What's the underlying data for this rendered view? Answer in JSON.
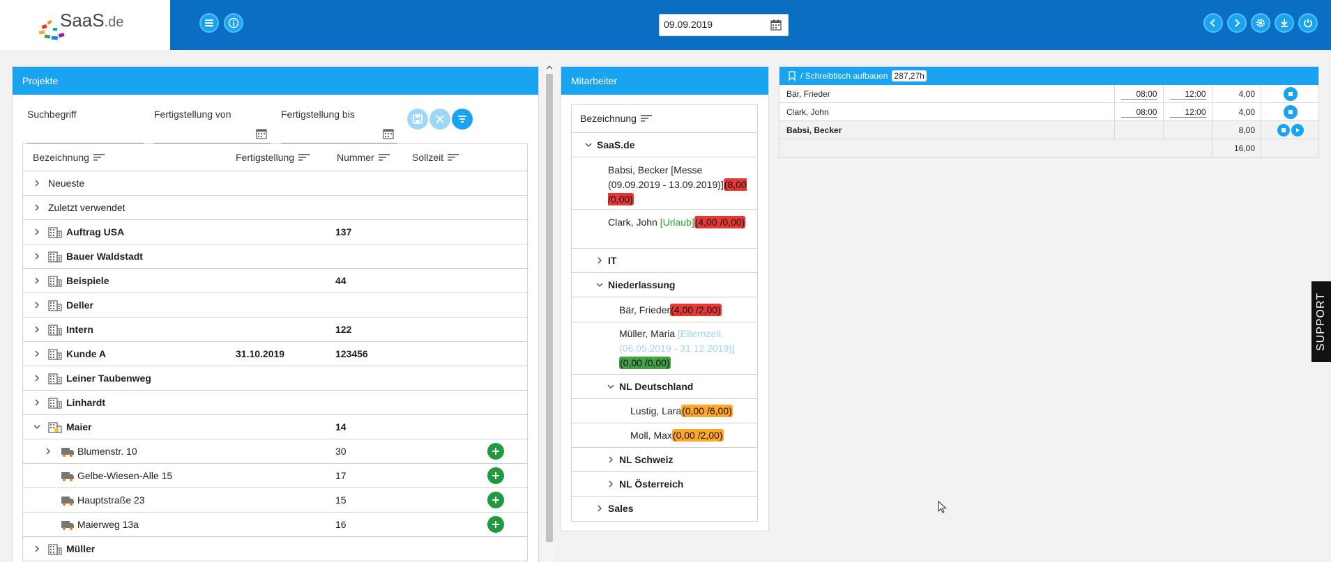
{
  "app": {
    "logo_name": "SaaS",
    "logo_tld": ".de",
    "date_value": "09.09.2019"
  },
  "topbar": {
    "left_buttons": [
      "list-icon",
      "info-icon"
    ],
    "right_buttons": [
      "chevron-left-icon",
      "chevron-right-icon",
      "gear-icon",
      "download-icon",
      "power-icon"
    ]
  },
  "projekte": {
    "title": "Projekte",
    "filters": {
      "search_label": "Suchbegriff",
      "from_label": "Fertigstellung von",
      "to_label": "Fertigstellung bis"
    },
    "columns": [
      "Bezeichnung",
      "Fertigstellung",
      "Nummer",
      "Sollzeit"
    ],
    "rows": [
      {
        "name": "Neueste"
      },
      {
        "name": "Zuletzt verwendet"
      },
      {
        "name": "Auftrag USA",
        "nummer": "137"
      },
      {
        "name": "Bauer Waldstadt"
      },
      {
        "name": "Beispiele",
        "nummer": "44"
      },
      {
        "name": "Deller"
      },
      {
        "name": "Intern",
        "nummer": "122"
      },
      {
        "name": "Kunde A",
        "fertig": "31.10.2019",
        "nummer": "123456"
      },
      {
        "name": "Leiner Taubenweg"
      },
      {
        "name": "Linhardt"
      },
      {
        "name": "Maier",
        "nummer": "14"
      },
      {
        "name": "Blumenstr. 10",
        "nummer": "30"
      },
      {
        "name": "Gelbe-Wiesen-Alle 15",
        "nummer": "17"
      },
      {
        "name": "Hauptstraße 23",
        "nummer": "15"
      },
      {
        "name": "Maierweg 13a",
        "nummer": "16"
      },
      {
        "name": "Müller"
      }
    ]
  },
  "mitarbeiter": {
    "title": "Mitarbeiter",
    "column": "Bezeichnung",
    "group_saas": "SaaS.de",
    "babsi_text": "Babsi, Becker [Messe (09.09.2019 - 13.09.2019)]",
    "babsi_badge": "(8,00 /0,00)",
    "clark_text": "Clark, John ",
    "clark_status": "[Urlaub]",
    "clark_badge": "(4,00 /0,00)",
    "group_it": "IT",
    "group_niederlassung": "Niederlassung",
    "baer_text": "Bär, Frieder",
    "baer_badge": "(4,00 /2,00)",
    "mueller_text": "Müller, Maria ",
    "mueller_status": "[Elternzeit (06.05.2019 - 31.12.2019)]",
    "mueller_badge": "(0,00 /0,00)",
    "group_nl_de": "NL Deutschland",
    "lustig_text": "Lustig, Lara",
    "lustig_badge": "(0,00 /6,00)",
    "moll_text": "Moll, Max",
    "moll_badge": "(0,00 /2,00)",
    "group_nl_ch": "NL Schweiz",
    "group_nl_at": "NL Österreich",
    "group_sales": "Sales"
  },
  "zeit": {
    "title": "/ Schreibtisch aufbauen",
    "hours": "287,27h",
    "rows": [
      {
        "name": "Bär, Frieder",
        "from": "08:00",
        "to": "12:00",
        "sum": "4,00"
      },
      {
        "name": "Clark, John",
        "from": "08:00",
        "to": "12:00",
        "sum": "4,00"
      },
      {
        "name": "Babsi, Becker",
        "sum": "8,00"
      }
    ],
    "total": "16,00"
  },
  "support_label": "SUPPORT",
  "colors": {
    "topbar": "#0a6fc2",
    "accent": "#1aa3f0",
    "red": "#e53935",
    "green": "#43a047",
    "orange": "#ffa726"
  }
}
